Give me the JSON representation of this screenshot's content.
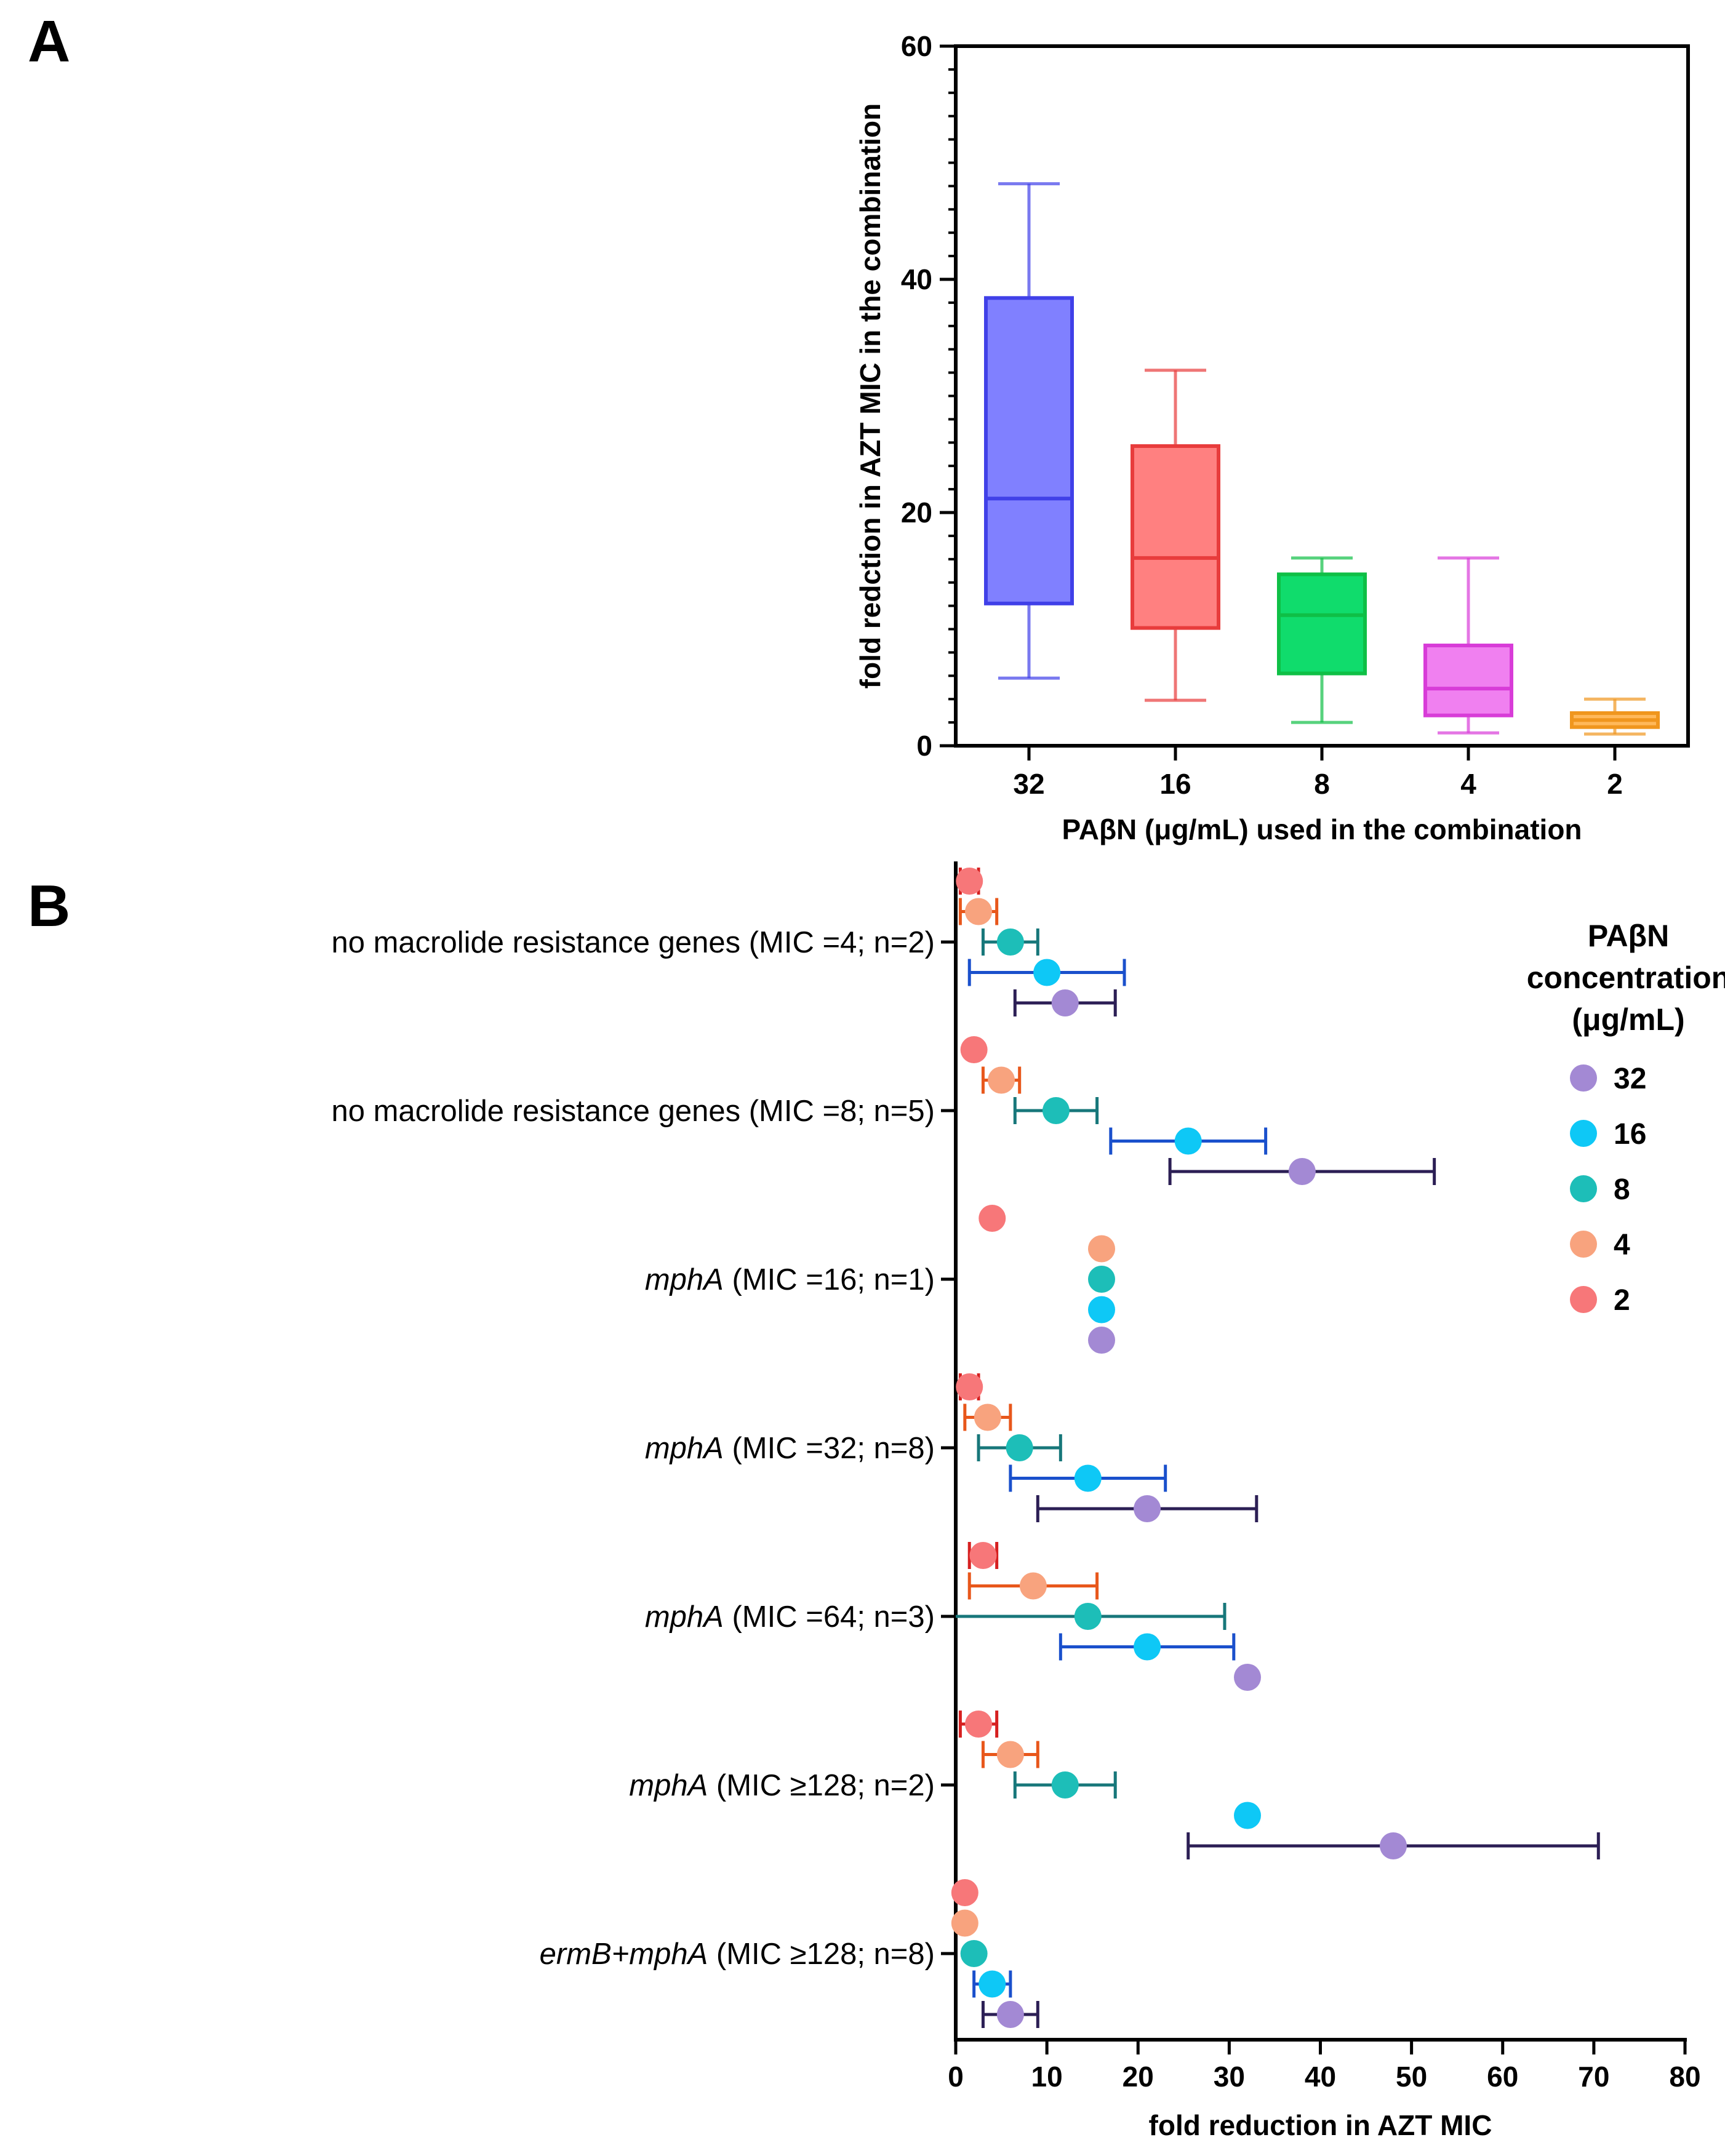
{
  "chart_data": [
    {
      "id": "A",
      "panel": "A",
      "type": "box",
      "xlabel": "PAβN (μg/mL) used in the combination",
      "ylabel": "fold redction in AZT MIC in the combination",
      "ylim": [
        0,
        60
      ],
      "yticks": [
        0,
        20,
        40,
        60
      ],
      "categories": [
        "32",
        "16",
        "8",
        "4",
        "2"
      ],
      "boxes": [
        {
          "category": "32",
          "min": 5.8,
          "q1": 12.2,
          "median": 21.2,
          "q3": 38.4,
          "max": 48.2,
          "edge": "#4040e8",
          "fill": "#8080ff"
        },
        {
          "category": "16",
          "min": 3.9,
          "q1": 10.1,
          "median": 16.1,
          "q3": 25.7,
          "max": 32.2,
          "edge": "#e83c3c",
          "fill": "#ff8080"
        },
        {
          "category": "8",
          "min": 2.0,
          "q1": 6.2,
          "median": 11.2,
          "q3": 14.7,
          "max": 16.1,
          "edge": "#0fbf46",
          "fill": "#10dc6c"
        },
        {
          "category": "4",
          "min": 1.1,
          "q1": 2.6,
          "median": 4.9,
          "q3": 8.6,
          "max": 16.1,
          "edge": "#d83cd8",
          "fill": "#f080f0"
        },
        {
          "category": "2",
          "min": 1.0,
          "q1": 1.6,
          "median": 2.2,
          "q3": 2.8,
          "max": 4.0,
          "edge": "#f0961e",
          "fill": "#ffb85a"
        }
      ]
    },
    {
      "id": "B",
      "panel": "B",
      "type": "scatter",
      "xlabel": "fold reduction in AZT MIC",
      "xlim": [
        0,
        80
      ],
      "xticks": [
        0,
        10,
        20,
        30,
        40,
        50,
        60,
        70,
        80
      ],
      "legend": {
        "title": [
          "PAβN",
          "concentration",
          "(μg/mL)"
        ],
        "position": "right",
        "entries": [
          {
            "label": "32",
            "color": "#a389d4"
          },
          {
            "label": "16",
            "color": "#0ec8f6"
          },
          {
            "label": "8",
            "color": "#1dbeb8"
          },
          {
            "label": "4",
            "color": "#f8a37e"
          },
          {
            "label": "2",
            "color": "#f77779"
          }
        ]
      },
      "bar_colors": {
        "32": "#2c1f55",
        "16": "#1a50cc",
        "8": "#17777a",
        "4": "#e8571b",
        "2": "#d62020"
      },
      "groups": [
        {
          "label_pre": "no macrolide resistance genes",
          "label_post": " (MIC =4; n=2)",
          "italic": false,
          "points": [
            {
              "conc": "2",
              "mean": 1.5,
              "err": 1
            },
            {
              "conc": "4",
              "mean": 2.5,
              "err": 2
            },
            {
              "conc": "8",
              "mean": 6,
              "err": 3
            },
            {
              "conc": "16",
              "mean": 10,
              "err": 8.5
            },
            {
              "conc": "32",
              "mean": 12,
              "err": 5.5
            }
          ]
        },
        {
          "label_pre": "no macrolide resistance genes",
          "label_post": " (MIC =8; n=5)",
          "italic": false,
          "points": [
            {
              "conc": "2",
              "mean": 2,
              "err": 0
            },
            {
              "conc": "4",
              "mean": 5,
              "err": 2
            },
            {
              "conc": "8",
              "mean": 11,
              "err": 4.5
            },
            {
              "conc": "16",
              "mean": 25.5,
              "err": 8.5
            },
            {
              "conc": "32",
              "mean": 38,
              "err": 14.5
            }
          ]
        },
        {
          "label_pre": "mphA",
          "label_post": " (MIC =16; n=1)",
          "italic": true,
          "points": [
            {
              "conc": "2",
              "mean": 4,
              "err": 0
            },
            {
              "conc": "4",
              "mean": 16,
              "err": 0
            },
            {
              "conc": "8",
              "mean": 16,
              "err": 0
            },
            {
              "conc": "16",
              "mean": 16,
              "err": 0
            },
            {
              "conc": "32",
              "mean": 16,
              "err": 0
            }
          ]
        },
        {
          "label_pre": "mphA",
          "label_post": " (MIC =32; n=8)",
          "italic": true,
          "points": [
            {
              "conc": "2",
              "mean": 1.5,
              "err": 1
            },
            {
              "conc": "4",
              "mean": 3.5,
              "err": 2.5
            },
            {
              "conc": "8",
              "mean": 7,
              "err": 4.5
            },
            {
              "conc": "16",
              "mean": 14.5,
              "err": 8.5
            },
            {
              "conc": "32",
              "mean": 21,
              "err": 12
            }
          ]
        },
        {
          "label_pre": "mphA",
          "label_post": " (MIC =64; n=3)",
          "italic": true,
          "points": [
            {
              "conc": "2",
              "mean": 3,
              "err": 1.5
            },
            {
              "conc": "4",
              "mean": 8.5,
              "err": 7
            },
            {
              "conc": "8",
              "mean": 14.5,
              "err": 15
            },
            {
              "conc": "16",
              "mean": 21,
              "err": 9.5
            },
            {
              "conc": "32",
              "mean": 32,
              "err": 0
            }
          ]
        },
        {
          "label_pre": "mphA",
          "label_post": " (MIC ≥128; n=2)",
          "italic": true,
          "points": [
            {
              "conc": "2",
              "mean": 2.5,
              "err": 2
            },
            {
              "conc": "4",
              "mean": 6,
              "err": 3
            },
            {
              "conc": "8",
              "mean": 12,
              "err": 5.5
            },
            {
              "conc": "16",
              "mean": 32,
              "err": 0
            },
            {
              "conc": "32",
              "mean": 48,
              "err": 22.5
            }
          ]
        },
        {
          "label_pre": "ermB+mphA",
          "label_post": " (MIC ≥128; n=8)",
          "italic": true,
          "points": [
            {
              "conc": "2",
              "mean": 1,
              "err": 0
            },
            {
              "conc": "4",
              "mean": 1,
              "err": 0
            },
            {
              "conc": "8",
              "mean": 2,
              "err": 0
            },
            {
              "conc": "16",
              "mean": 4,
              "err": 2
            },
            {
              "conc": "32",
              "mean": 6,
              "err": 3
            }
          ]
        }
      ]
    }
  ]
}
